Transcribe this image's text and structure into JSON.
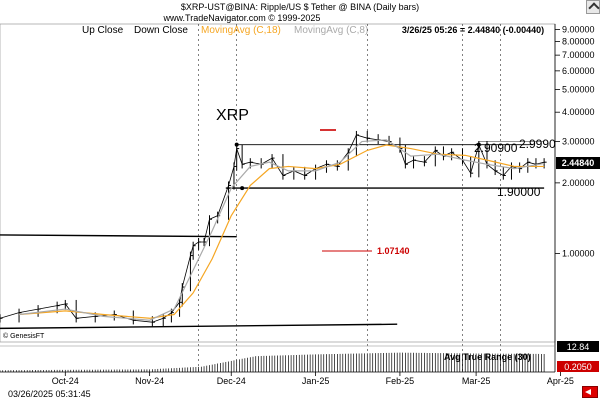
{
  "header": {
    "title": "$XRP-UST@BINA:  Ripple/US $ Tether @ BINA  (Daily bars)",
    "source": "www.TradeNavigator.com © 1999-2025",
    "quote": "3/26/25 05:26 = 2.44840 (-0.00440)"
  },
  "legend": [
    {
      "label": "Up Close",
      "color": "#000000"
    },
    {
      "label": "Down Close",
      "color": "#000000"
    },
    {
      "label": "MovingAvg (C,18)",
      "color": "#f5a623"
    },
    {
      "label": "MovingAvg (C,8)",
      "color": "#aaaaaa"
    }
  ],
  "annotations": {
    "asset": "XRP",
    "level_top": "2.90900",
    "level_top2": "2.9990",
    "level_bottom": "1.90000",
    "level_low": "1.07140",
    "current_price": "2.44840",
    "watermark": "© GenesisFT"
  },
  "indicator": {
    "title": "Avg True Range (30)",
    "value_top": "12.84",
    "value_bottom": "0.2050"
  },
  "footer": {
    "timestamp": "03/26/2025 05:31:45"
  },
  "colors": {
    "ma18": "#f5a623",
    "ma8": "#aaaaaa",
    "low_marker": "#cc0000",
    "high_marker": "#cc0000",
    "price_box": "#000000",
    "low_box": "#cc0000"
  },
  "chart_data": {
    "type": "bar",
    "title": "$XRP-UST@BINA:  Ripple/US $ Tether @ BINA  (Daily bars)",
    "yscale": "log",
    "ylim": [
      0.42,
      9.5
    ],
    "y_tick_labels": [
      "9.00000",
      "8.00000",
      "7.00000",
      "6.00000",
      "5.00000",
      "4.00000",
      "3.00000",
      "2.00000",
      "1.00000"
    ],
    "y_ticks": [
      9,
      8,
      7,
      6,
      5,
      4,
      3,
      2,
      1
    ],
    "x_tick_labels": [
      "Oct-24",
      "Nov-24",
      "Dec-24",
      "Jan-25",
      "Feb-25",
      "Mar-25",
      "Apr-25"
    ],
    "x_ticks": [
      "2024-10-01",
      "2024-11-01",
      "2024-12-01",
      "2025-01-01",
      "2025-02-01",
      "2025-03-01",
      "2025-04-01"
    ],
    "xlim": [
      "2024-09-07",
      "2025-03-30"
    ],
    "grid_lines": [
      "2024-11-19",
      "2024-12-03",
      "2025-01-20",
      "2025-02-24",
      "2025-03-10"
    ],
    "series": [
      {
        "name": "Daily bars",
        "points": [
          [
            "2024-09-07",
            0.53
          ],
          [
            "2024-09-14",
            0.56
          ],
          [
            "2024-09-21",
            0.58
          ],
          [
            "2024-09-28",
            0.6
          ],
          [
            "2024-10-01",
            0.61
          ],
          [
            "2024-10-05",
            0.53
          ],
          [
            "2024-10-12",
            0.54
          ],
          [
            "2024-10-19",
            0.55
          ],
          [
            "2024-10-26",
            0.52
          ],
          [
            "2024-11-02",
            0.51
          ],
          [
            "2024-11-06",
            0.53
          ],
          [
            "2024-11-09",
            0.56
          ],
          [
            "2024-11-12",
            0.62
          ],
          [
            "2024-11-13",
            0.72
          ],
          [
            "2024-11-16",
            0.98
          ],
          [
            "2024-11-17",
            1.08
          ],
          [
            "2024-11-19",
            1.12
          ],
          [
            "2024-11-21",
            1.12
          ],
          [
            "2024-11-23",
            1.4
          ],
          [
            "2024-11-26",
            1.45
          ],
          [
            "2024-11-30",
            1.95
          ],
          [
            "2024-12-02",
            2.35
          ],
          [
            "2024-12-03",
            2.8
          ],
          [
            "2024-12-05",
            2.4
          ],
          [
            "2024-12-08",
            2.45
          ],
          [
            "2024-12-12",
            2.4
          ],
          [
            "2024-12-16",
            2.55
          ],
          [
            "2024-12-20",
            2.15
          ],
          [
            "2024-12-24",
            2.25
          ],
          [
            "2024-12-28",
            2.15
          ],
          [
            "2025-01-01",
            2.3
          ],
          [
            "2025-01-05",
            2.4
          ],
          [
            "2025-01-09",
            2.35
          ],
          [
            "2025-01-13",
            2.7
          ],
          [
            "2025-01-16",
            3.2
          ],
          [
            "2025-01-20",
            3.1
          ],
          [
            "2025-01-24",
            3.05
          ],
          [
            "2025-01-28",
            3.0
          ],
          [
            "2025-02-01",
            2.8
          ],
          [
            "2025-02-03",
            2.4
          ],
          [
            "2025-02-06",
            2.5
          ],
          [
            "2025-02-10",
            2.45
          ],
          [
            "2025-02-14",
            2.75
          ],
          [
            "2025-02-17",
            2.6
          ],
          [
            "2025-02-20",
            2.7
          ],
          [
            "2025-02-24",
            2.5
          ],
          [
            "2025-02-27",
            2.2
          ],
          [
            "2025-03-02",
            2.9
          ],
          [
            "2025-03-05",
            2.4
          ],
          [
            "2025-03-08",
            2.25
          ],
          [
            "2025-03-11",
            2.15
          ],
          [
            "2025-03-14",
            2.35
          ],
          [
            "2025-03-17",
            2.3
          ],
          [
            "2025-03-20",
            2.45
          ],
          [
            "2025-03-23",
            2.4
          ],
          [
            "2025-03-26",
            2.45
          ]
        ]
      },
      {
        "name": "MovingAvg (C,18)",
        "points": [
          [
            "2024-09-14",
            0.55
          ],
          [
            "2024-10-01",
            0.57
          ],
          [
            "2024-10-15",
            0.55
          ],
          [
            "2024-11-01",
            0.53
          ],
          [
            "2024-11-10",
            0.55
          ],
          [
            "2024-11-17",
            0.68
          ],
          [
            "2024-11-24",
            0.95
          ],
          [
            "2024-12-01",
            1.45
          ],
          [
            "2024-12-08",
            1.95
          ],
          [
            "2024-12-15",
            2.3
          ],
          [
            "2024-12-22",
            2.35
          ],
          [
            "2025-01-01",
            2.3
          ],
          [
            "2025-01-10",
            2.4
          ],
          [
            "2025-01-20",
            2.75
          ],
          [
            "2025-01-27",
            2.9
          ],
          [
            "2025-02-05",
            2.8
          ],
          [
            "2025-02-15",
            2.65
          ],
          [
            "2025-02-25",
            2.62
          ],
          [
            "2025-03-05",
            2.5
          ],
          [
            "2025-03-15",
            2.35
          ],
          [
            "2025-03-26",
            2.35
          ]
        ]
      },
      {
        "name": "MovingAvg (C,8)",
        "points": [
          [
            "2024-09-14",
            0.55
          ],
          [
            "2024-10-01",
            0.58
          ],
          [
            "2024-10-15",
            0.54
          ],
          [
            "2024-11-01",
            0.52
          ],
          [
            "2024-11-10",
            0.58
          ],
          [
            "2024-11-17",
            0.85
          ],
          [
            "2024-11-24",
            1.25
          ],
          [
            "2024-12-01",
            1.9
          ],
          [
            "2024-12-08",
            2.35
          ],
          [
            "2024-12-15",
            2.45
          ],
          [
            "2024-12-22",
            2.25
          ],
          [
            "2025-01-01",
            2.25
          ],
          [
            "2025-01-10",
            2.45
          ],
          [
            "2025-01-18",
            3.0
          ],
          [
            "2025-01-27",
            3.05
          ],
          [
            "2025-02-05",
            2.6
          ],
          [
            "2025-02-15",
            2.65
          ],
          [
            "2025-02-25",
            2.5
          ],
          [
            "2025-03-05",
            2.4
          ],
          [
            "2025-03-15",
            2.3
          ],
          [
            "2025-03-26",
            2.42
          ]
        ]
      },
      {
        "name": "Avg True Range (30)",
        "points": [
          [
            "2024-09-07",
            0.02
          ],
          [
            "2024-11-01",
            0.03
          ],
          [
            "2024-11-20",
            0.06
          ],
          [
            "2024-12-10",
            0.18
          ],
          [
            "2025-01-01",
            0.2
          ],
          [
            "2025-02-01",
            0.22
          ],
          [
            "2025-03-01",
            0.21
          ],
          [
            "2025-03-26",
            0.205
          ]
        ]
      }
    ],
    "levels": [
      {
        "value": 2.909,
        "label": "2.90900"
      },
      {
        "value": 2.999,
        "label": "2.9990"
      },
      {
        "value": 1.9,
        "label": "1.90000"
      },
      {
        "value": 1.0714,
        "label": "1.07140"
      }
    ],
    "trend_lines": [
      {
        "from": [
          "2024-09-07",
          1.2
        ],
        "to": [
          "2024-12-03",
          1.18
        ]
      },
      {
        "from": [
          "2024-09-07",
          0.48
        ],
        "to": [
          "2025-01-31",
          0.5
        ]
      }
    ]
  }
}
